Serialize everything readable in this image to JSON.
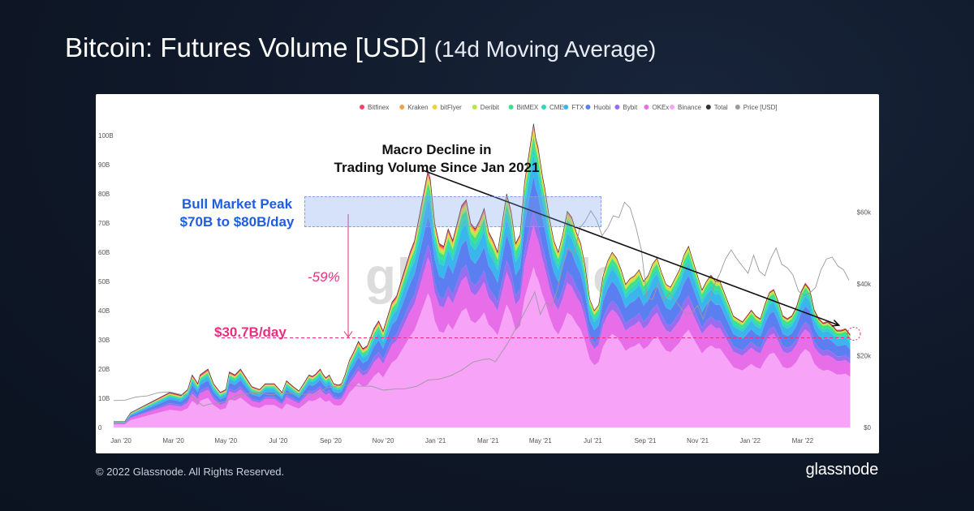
{
  "header": {
    "title_main": "Bitcoin: Futures Volume [USD]",
    "title_sub": "(14d Moving Average)"
  },
  "footer": {
    "copyright": "© 2022 Glassnode. All Rights Reserved.",
    "brand": "glassnode"
  },
  "watermark": "glassnode",
  "annotations": {
    "bull_peak_line1": "Bull Market Peak",
    "bull_peak_line2": "$70B to $80B/day",
    "macro_line1": "Macro Decline in",
    "macro_line2": "Trading Volume Since Jan 2021",
    "decline_pct": "-59%",
    "current_level": "$30.7B/day",
    "bull_low": 70,
    "bull_high": 80,
    "current_value": 30.7
  },
  "colors": {
    "Bitfinex": "#f4426b",
    "Kraken": "#f2a14a",
    "bitFlyer": "#efd23d",
    "Deribit": "#b6e84a",
    "BitMEX": "#3fe08a",
    "CME": "#31d6c2",
    "FTX": "#3ab6ec",
    "Huobi": "#5b7ff0",
    "Bybit": "#9a6cef",
    "OKEx": "#e86de8",
    "Binance": "#f7a3f7",
    "Total": "#333333",
    "Price [USD]": "#9a9a9a",
    "annotation_pink": "#ea2f7d",
    "annotation_blue": "#1f5de0"
  },
  "chart_data": {
    "type": "area",
    "title": "Bitcoin: Futures Volume [USD] (14d Moving Average)",
    "stacked": true,
    "legend": [
      "Bitfinex",
      "Kraken",
      "bitFlyer",
      "Deribit",
      "BitMEX",
      "CME",
      "FTX",
      "Huobi",
      "Bybit",
      "OKEx",
      "Binance",
      "Total",
      "Price [USD]"
    ],
    "legend_position": "top-right",
    "x_labels": [
      "Jan '20",
      "Mar '20",
      "May '20",
      "Jul '20",
      "Sep '20",
      "Nov '20",
      "Jan '21",
      "Mar '21",
      "May '21",
      "Jul '21",
      "Sep '21",
      "Nov '21",
      "Jan '22",
      "Mar '22"
    ],
    "y_left_labels": [
      "0",
      "10B",
      "20B",
      "30B",
      "40B",
      "50B",
      "60B",
      "70B",
      "80B",
      "90B",
      "100B"
    ],
    "y_left_range": [
      0,
      100
    ],
    "y_right_labels": [
      "$0",
      "$20k",
      "$40k",
      "$60k"
    ],
    "y_right_range": [
      0,
      70
    ],
    "series_order_bottom_to_top": [
      "Binance",
      "OKEx",
      "Bybit",
      "Huobi",
      "FTX",
      "CME",
      "BitMEX",
      "Deribit",
      "bitFlyer",
      "Kraken",
      "Bitfinex"
    ],
    "total_points": [
      [
        0,
        2
      ],
      [
        1,
        2
      ],
      [
        1.5,
        5
      ],
      [
        2,
        6
      ],
      [
        3,
        8
      ],
      [
        4,
        10
      ],
      [
        5,
        12
      ],
      [
        6,
        11
      ],
      [
        6.6,
        13
      ],
      [
        7,
        18
      ],
      [
        7.5,
        15
      ],
      [
        7.7,
        18
      ],
      [
        8.4,
        20
      ],
      [
        8.9,
        15
      ],
      [
        9.5,
        12
      ],
      [
        10,
        13
      ],
      [
        10.3,
        19
      ],
      [
        10.8,
        18
      ],
      [
        11.3,
        20
      ],
      [
        11.8,
        17
      ],
      [
        12.3,
        14
      ],
      [
        13,
        13
      ],
      [
        13.5,
        15
      ],
      [
        14.3,
        15
      ],
      [
        15,
        12
      ],
      [
        15.4,
        16
      ],
      [
        16,
        14
      ],
      [
        16.5,
        12.5
      ],
      [
        17,
        15.5
      ],
      [
        17.4,
        18
      ],
      [
        17.7,
        17.5
      ],
      [
        18,
        18.3
      ],
      [
        18.4,
        20
      ],
      [
        18.6,
        18.5
      ],
      [
        18.9,
        17
      ],
      [
        19.2,
        18
      ],
      [
        19.6,
        15
      ],
      [
        20,
        14.5
      ],
      [
        20.3,
        15
      ],
      [
        20.6,
        18
      ],
      [
        21,
        23
      ],
      [
        21.4,
        26
      ],
      [
        21.8,
        29.5
      ],
      [
        22.2,
        27
      ],
      [
        22.6,
        28
      ],
      [
        22.9,
        31
      ],
      [
        23.2,
        34
      ],
      [
        23.6,
        36.5
      ],
      [
        24,
        33
      ],
      [
        24.4,
        38
      ],
      [
        24.8,
        43
      ],
      [
        25.2,
        45
      ],
      [
        25.6,
        50
      ],
      [
        26,
        55
      ],
      [
        26.4,
        60
      ],
      [
        26.8,
        64
      ],
      [
        27.2,
        72
      ],
      [
        27.6,
        80
      ],
      [
        28,
        88
      ],
      [
        28.2,
        85
      ],
      [
        28.6,
        70
      ],
      [
        29,
        63
      ],
      [
        29.4,
        62
      ],
      [
        29.8,
        68
      ],
      [
        30.2,
        64
      ],
      [
        30.6,
        70
      ],
      [
        31,
        76
      ],
      [
        31.4,
        78
      ],
      [
        31.8,
        70
      ],
      [
        32.2,
        68
      ],
      [
        32.6,
        71
      ],
      [
        33,
        75
      ],
      [
        33.4,
        67
      ],
      [
        33.8,
        64
      ],
      [
        34.2,
        60
      ],
      [
        34.6,
        70
      ],
      [
        35,
        80
      ],
      [
        35.4,
        74
      ],
      [
        35.8,
        63
      ],
      [
        36.2,
        66
      ],
      [
        36.6,
        84
      ],
      [
        37,
        94
      ],
      [
        37.4,
        104
      ],
      [
        37.6,
        99
      ],
      [
        37.8,
        96
      ],
      [
        38.2,
        86
      ],
      [
        38.4,
        82
      ],
      [
        38.8,
        72
      ],
      [
        39.2,
        64
      ],
      [
        39.6,
        60
      ],
      [
        40,
        66
      ],
      [
        40.4,
        74
      ],
      [
        40.8,
        72
      ],
      [
        41.2,
        67
      ],
      [
        41.6,
        63
      ],
      [
        42,
        55
      ],
      [
        42.4,
        44
      ],
      [
        42.8,
        40
      ],
      [
        43.2,
        42
      ],
      [
        43.6,
        52
      ],
      [
        44,
        57
      ],
      [
        44.4,
        60
      ],
      [
        44.8,
        58
      ],
      [
        45.2,
        54
      ],
      [
        45.6,
        49
      ],
      [
        46,
        51
      ],
      [
        46.4,
        52
      ],
      [
        46.8,
        54
      ],
      [
        47.2,
        50
      ],
      [
        47.6,
        52
      ],
      [
        48,
        56
      ],
      [
        48.4,
        58
      ],
      [
        48.8,
        53
      ],
      [
        49.2,
        49
      ],
      [
        49.6,
        48
      ],
      [
        50,
        51
      ],
      [
        50.4,
        54
      ],
      [
        50.8,
        59
      ],
      [
        51.2,
        62
      ],
      [
        51.6,
        57
      ],
      [
        52,
        52
      ],
      [
        52.4,
        47
      ],
      [
        52.8,
        50
      ],
      [
        53.2,
        52
      ],
      [
        53.6,
        50
      ],
      [
        54,
        50
      ],
      [
        54.4,
        46
      ],
      [
        54.8,
        42
      ],
      [
        55.2,
        38
      ],
      [
        55.6,
        37
      ],
      [
        56,
        36
      ],
      [
        56.4,
        38
      ],
      [
        56.8,
        40
      ],
      [
        57.2,
        38
      ],
      [
        57.6,
        37
      ],
      [
        58,
        42
      ],
      [
        58.4,
        46
      ],
      [
        58.8,
        47
      ],
      [
        59.2,
        43
      ],
      [
        59.6,
        38
      ],
      [
        60,
        37
      ],
      [
        60.4,
        38
      ],
      [
        60.8,
        41
      ],
      [
        61.2,
        46
      ],
      [
        61.6,
        49
      ],
      [
        62,
        47
      ],
      [
        62.4,
        40
      ],
      [
        62.8,
        37
      ],
      [
        63.2,
        35.5
      ],
      [
        63.6,
        36
      ],
      [
        64,
        34.8
      ],
      [
        64.4,
        33
      ],
      [
        64.8,
        33
      ],
      [
        65.2,
        33.5
      ],
      [
        65.6,
        31.5
      ]
    ],
    "price_points": [
      [
        0,
        7.5
      ],
      [
        1,
        7.6
      ],
      [
        2,
        8.5
      ],
      [
        3,
        8.8
      ],
      [
        4,
        9.7
      ],
      [
        5,
        9.9
      ],
      [
        6,
        9.2
      ],
      [
        7,
        8.7
      ],
      [
        7.5,
        7.0
      ],
      [
        8,
        6.0
      ],
      [
        8.5,
        6.5
      ],
      [
        9,
        6.7
      ],
      [
        10,
        7.2
      ],
      [
        11,
        8.9
      ],
      [
        12,
        9.5
      ],
      [
        13,
        9.7
      ],
      [
        14,
        9.1
      ],
      [
        15,
        9.6
      ],
      [
        16,
        9.5
      ],
      [
        17,
        9.2
      ],
      [
        18,
        9.3
      ],
      [
        19,
        11.1
      ],
      [
        20,
        11.6
      ],
      [
        21,
        11.8
      ],
      [
        22,
        11.5
      ],
      [
        23,
        11.5
      ],
      [
        24,
        10.4
      ],
      [
        25,
        10.7
      ],
      [
        26,
        10.8
      ],
      [
        27,
        11.5
      ],
      [
        28,
        13.2
      ],
      [
        29,
        13.5
      ],
      [
        30,
        14.4
      ],
      [
        31,
        16.0
      ],
      [
        32,
        18.2
      ],
      [
        33,
        19.0
      ],
      [
        33.5,
        19.1
      ],
      [
        34,
        18.3
      ],
      [
        35,
        23.0
      ],
      [
        36,
        28.6
      ],
      [
        37,
        34.5
      ],
      [
        37.5,
        37.8
      ],
      [
        38,
        31.5
      ],
      [
        38.5,
        34.8
      ],
      [
        39,
        33.9
      ],
      [
        39.5,
        38.2
      ],
      [
        40,
        45.0
      ],
      [
        40.5,
        50.0
      ],
      [
        41,
        48.0
      ],
      [
        41.5,
        55.5
      ],
      [
        42,
        57.5
      ],
      [
        42.5,
        60.4
      ],
      [
        43,
        58.0
      ],
      [
        43.5,
        53.5
      ],
      [
        44,
        55.7
      ],
      [
        44.5,
        59.0
      ],
      [
        45,
        58.5
      ],
      [
        45.5,
        62.8
      ],
      [
        46,
        61.2
      ],
      [
        46.5,
        56.0
      ],
      [
        47,
        49.5
      ],
      [
        47.5,
        36.2
      ],
      [
        48,
        35.7
      ],
      [
        48.5,
        40.2
      ],
      [
        49,
        35.5
      ],
      [
        49.5,
        37.4
      ],
      [
        50,
        35.6
      ],
      [
        50.5,
        33.4
      ],
      [
        51,
        31.5
      ],
      [
        51.5,
        31.9
      ],
      [
        52,
        34.0
      ],
      [
        52.5,
        30.2
      ],
      [
        53,
        34.8
      ],
      [
        53.5,
        39.8
      ],
      [
        54,
        43.0
      ],
      [
        54.5,
        47.0
      ],
      [
        55,
        49.5
      ],
      [
        55.5,
        47.0
      ],
      [
        56,
        45.0
      ],
      [
        56.5,
        43.0
      ],
      [
        57,
        48.0
      ],
      [
        57.5,
        43.6
      ],
      [
        58,
        42.3
      ],
      [
        58.5,
        47.0
      ],
      [
        59,
        50.0
      ],
      [
        59.5,
        45.5
      ],
      [
        60,
        44.5
      ],
      [
        60.5,
        42.5
      ],
      [
        61,
        38.0
      ],
      [
        61.5,
        36.8
      ],
      [
        62,
        37.5
      ],
      [
        62.5,
        39.0
      ],
      [
        63,
        44.0
      ],
      [
        63.5,
        47.0
      ],
      [
        64,
        47.5
      ],
      [
        64.5,
        45.0
      ],
      [
        65,
        44.0
      ],
      [
        65.5,
        41.0
      ]
    ],
    "trend_line": {
      "from": [
        "Jan '21",
        88
      ],
      "to": [
        "Apr '22",
        35
      ]
    }
  }
}
